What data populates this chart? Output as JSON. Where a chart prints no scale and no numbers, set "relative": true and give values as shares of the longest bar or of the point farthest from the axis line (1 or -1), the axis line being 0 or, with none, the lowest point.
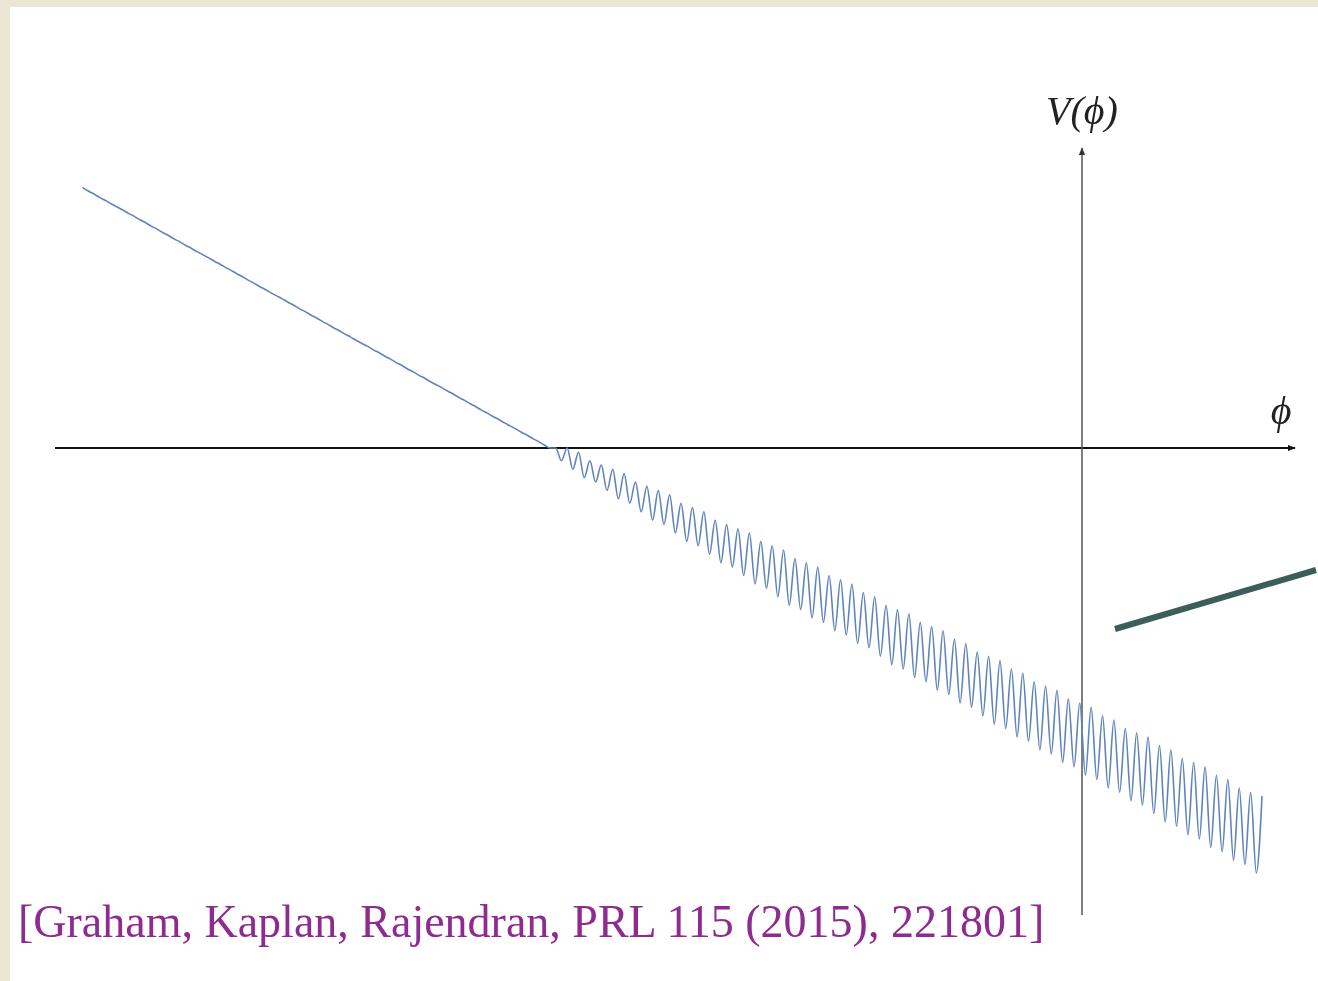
{
  "chart_data": {
    "type": "line",
    "xlabel": "ϕ",
    "ylabel": "V(ϕ)",
    "relative": true,
    "categories": [
      null,
      null,
      null,
      null,
      null,
      null,
      null,
      null,
      null,
      null,
      null,
      null,
      null,
      null,
      null,
      null,
      null,
      null,
      null,
      null,
      null,
      null,
      null,
      null,
      null,
      null,
      null,
      null,
      null,
      null,
      null,
      null,
      null,
      null,
      null,
      null,
      null,
      null,
      null,
      null,
      null,
      null,
      null,
      null,
      null,
      null,
      null,
      null,
      null,
      null,
      null,
      null,
      null,
      null,
      null,
      null,
      null,
      null,
      null,
      null,
      null,
      null,
      null,
      null,
      null,
      null,
      null,
      null,
      null,
      null,
      null,
      null,
      null,
      null,
      null,
      null,
      null,
      null,
      null,
      null,
      null,
      null,
      null,
      null,
      null,
      null,
      null,
      null,
      null,
      null,
      null,
      null,
      null,
      null,
      null,
      null,
      null,
      null,
      null,
      null,
      null,
      null,
      null,
      null,
      null,
      null,
      null,
      null,
      null,
      null,
      null,
      null,
      null,
      null,
      null,
      null,
      null,
      null,
      null,
      null,
      null,
      null,
      null,
      null,
      null,
      null,
      null,
      null,
      null,
      null,
      null,
      null,
      null,
      null,
      null,
      null,
      null,
      null,
      null,
      null,
      null,
      null,
      null,
      null,
      null,
      null,
      null,
      null,
      null,
      null,
      null,
      null,
      null,
      null,
      null,
      null,
      null,
      null,
      null,
      null,
      null,
      null,
      null,
      null,
      null,
      null,
      null,
      null,
      null,
      null,
      null,
      null,
      null,
      null,
      null,
      null,
      null,
      null,
      null,
      null,
      null,
      null,
      null,
      null,
      null,
      null,
      null,
      null,
      null,
      null,
      null,
      null,
      null,
      null,
      null,
      null,
      null,
      null,
      null,
      null,
      null,
      null,
      null,
      null,
      null,
      null,
      null,
      null
    ],
    "series": [
      {
        "color": "#5f84bd",
        "values": [
          0.612,
          0.604,
          0.597,
          0.589,
          0.582,
          0.574,
          0.567,
          0.56,
          0.552,
          0.545,
          0.537,
          0.53,
          0.522,
          0.515,
          0.507,
          0.5,
          0.492,
          0.485,
          0.477,
          0.47,
          0.462,
          0.455,
          0.448,
          0.44,
          0.433,
          0.425,
          0.418,
          0.41,
          0.403,
          0.395,
          0.388,
          0.38,
          0.373,
          0.365,
          0.358,
          0.351,
          0.343,
          0.336,
          0.328,
          0.321,
          0.313,
          0.306,
          0.298,
          0.291,
          0.283,
          0.276,
          0.268,
          0.261,
          0.253,
          0.246,
          0.239,
          0.231,
          0.224,
          0.216,
          0.209,
          0.201,
          0.194,
          0.186,
          0.179,
          0.171,
          0.164,
          0.156,
          0.149,
          0.142,
          0.134,
          0.127,
          0.119,
          0.112,
          0.104,
          0.097,
          0.089,
          0.082,
          0.074,
          0.067,
          0.059,
          0.052,
          0.045,
          0.037,
          0.03,
          0.022,
          0.015,
          0.007,
          0,
          0,
          -0.03,
          0,
          -0.05,
          -0.01,
          -0.07,
          -0.03,
          -0.08,
          -0.04,
          -0.1,
          -0.05,
          -0.12,
          -0.06,
          -0.13,
          -0.08,
          -0.15,
          -0.09,
          -0.17,
          -0.1,
          -0.18,
          -0.11,
          -0.2,
          -0.13,
          -0.22,
          -0.14,
          -0.23,
          -0.15,
          -0.25,
          -0.17,
          -0.27,
          -0.18,
          -0.28,
          -0.19,
          -0.3,
          -0.2,
          -0.32,
          -0.22,
          -0.33,
          -0.23,
          -0.35,
          -0.24,
          -0.37,
          -0.26,
          -0.38,
          -0.27,
          -0.4,
          -0.28,
          -0.41,
          -0.3,
          -0.43,
          -0.31,
          -0.44,
          -0.32,
          -0.46,
          -0.34,
          -0.47,
          -0.35,
          -0.49,
          -0.37,
          -0.51,
          -0.38,
          -0.52,
          -0.39,
          -0.54,
          -0.41,
          -0.55,
          -0.42,
          -0.57,
          -0.43,
          -0.58,
          -0.45,
          -0.6,
          -0.46,
          -0.61,
          -0.48,
          -0.63,
          -0.49,
          -0.65,
          -0.5,
          -0.66,
          -0.52,
          -0.68,
          -0.53,
          -0.69,
          -0.55,
          -0.71,
          -0.56,
          -0.72,
          -0.57,
          -0.74,
          -0.59,
          -0.75,
          -0.6,
          -0.77,
          -0.61,
          -0.78,
          -0.63,
          -0.8,
          -0.64,
          -0.81,
          -0.66,
          -0.83,
          -0.67,
          -0.84,
          -0.68,
          -0.86,
          -0.7,
          -0.88,
          -0.71,
          -0.89,
          -0.73,
          -0.91,
          -0.74,
          -0.92,
          -0.75,
          -0.94,
          -0.77,
          -0.95,
          -0.78,
          -0.97,
          -0.8,
          -0.98,
          -0.81,
          -1.0,
          -0.82
        ]
      }
    ],
    "annotations": [
      "[Graham, Kaplan, Rajendran, PRL 115 (2015), 221801]"
    ]
  }
}
